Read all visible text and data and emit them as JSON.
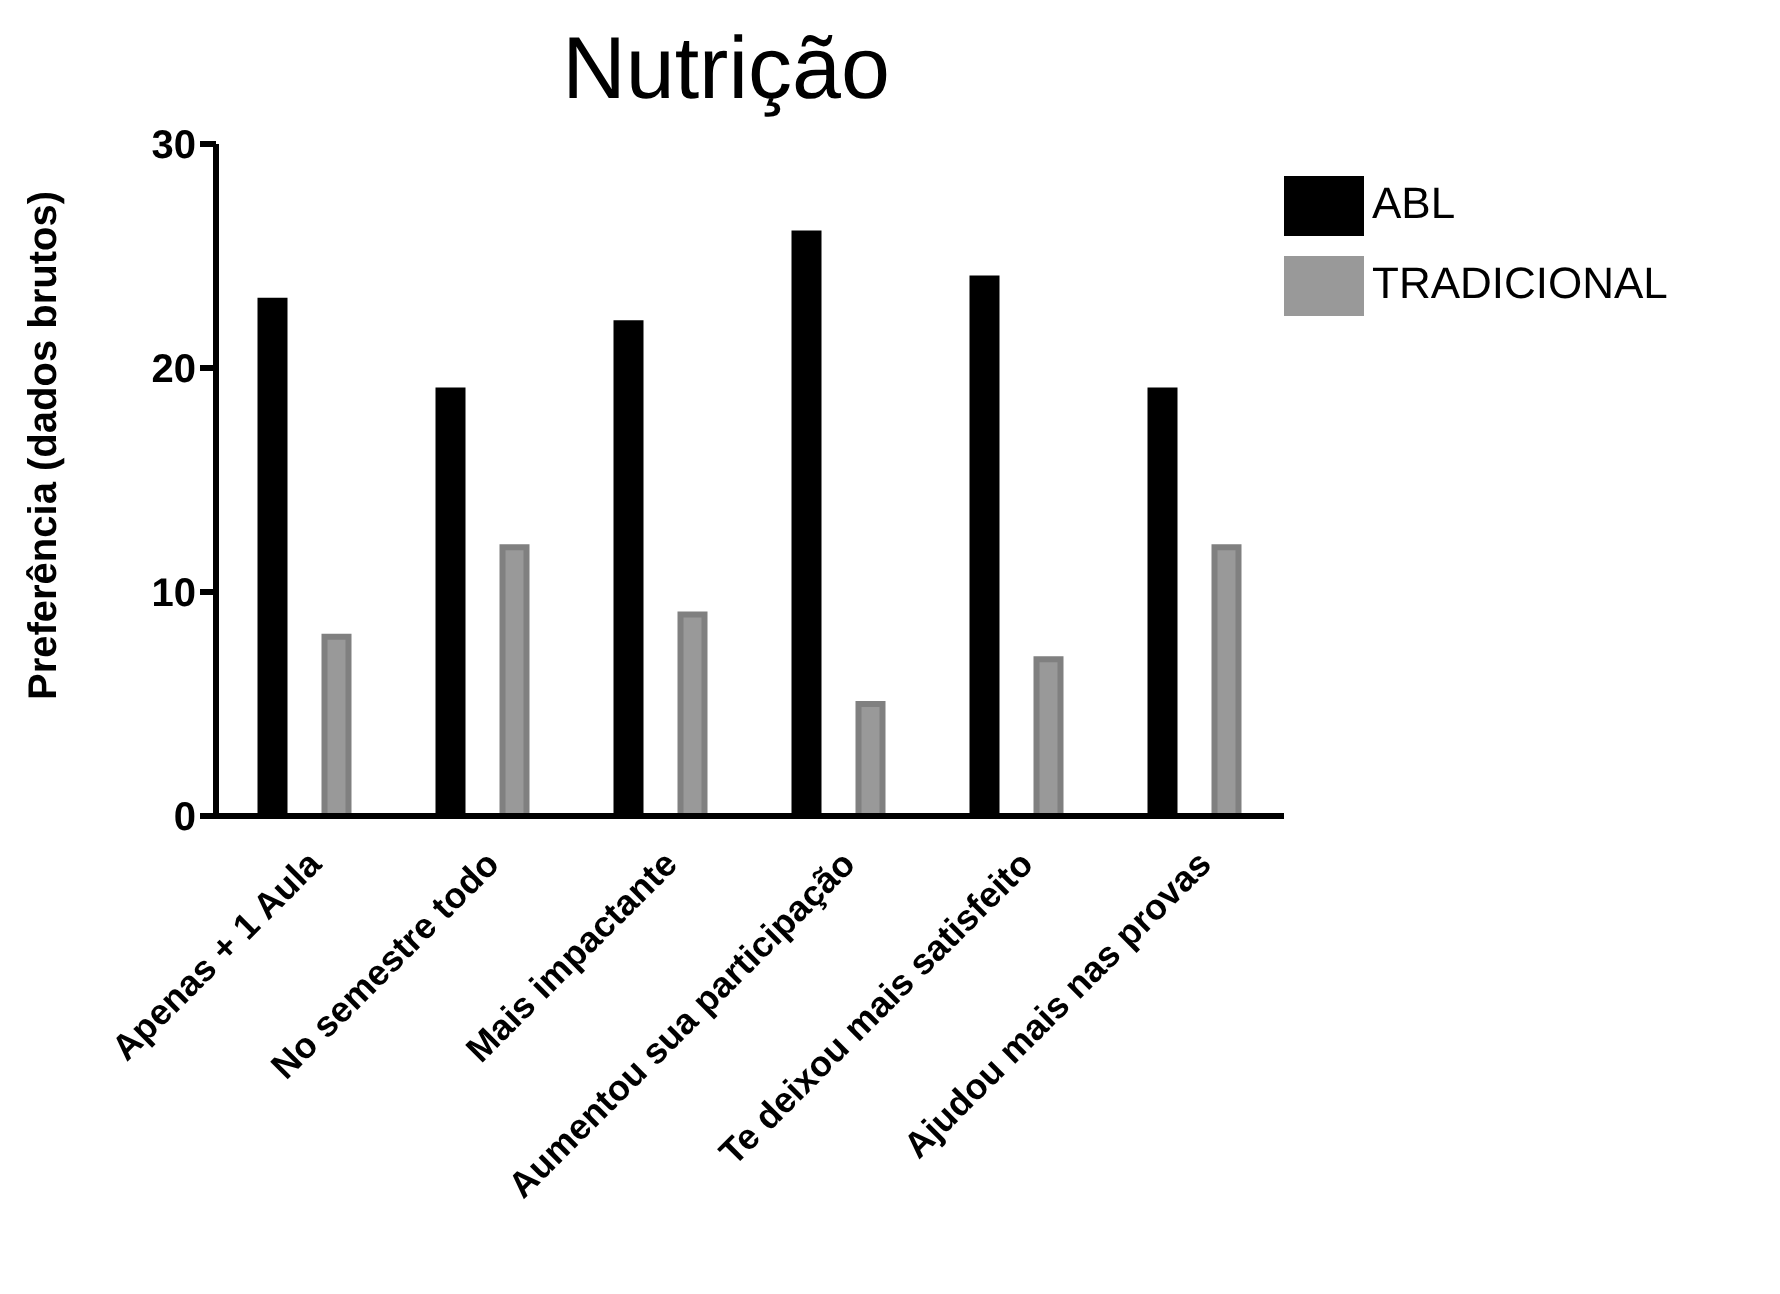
{
  "chart_data": {
    "type": "bar",
    "title": "Nutrição",
    "ylabel": "Preferência (dados brutos)",
    "categories": [
      "Apenas + 1 Aula",
      "No semestre todo",
      "Mais impactante",
      "Aumentou sua participação",
      "Te deixou mais satisfeito",
      "Ajudou mais nas provas"
    ],
    "series": [
      {
        "name": "ABL",
        "color": "#000000",
        "values": [
          23,
          19,
          22,
          26,
          24,
          19
        ]
      },
      {
        "name": "TRADICIONAL",
        "color": "#999999",
        "values": [
          8,
          12,
          9,
          5,
          7,
          12
        ]
      }
    ],
    "ylim": [
      0,
      30
    ],
    "yticks": [
      0,
      10,
      20,
      30
    ],
    "grid": false,
    "legend": "top right"
  }
}
